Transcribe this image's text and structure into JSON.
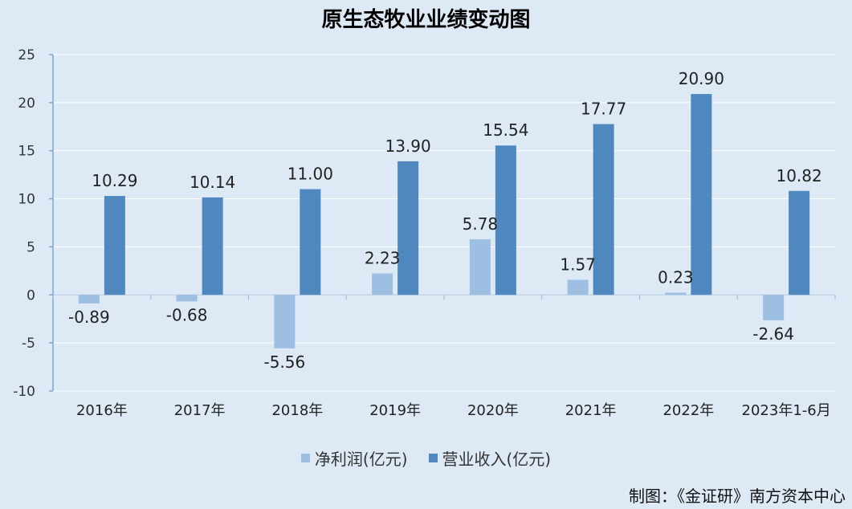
{
  "chart_data": {
    "type": "bar",
    "title": "原生态牧业业绩变动图",
    "categories": [
      "2016年",
      "2017年",
      "2018年",
      "2019年",
      "2020年",
      "2021年",
      "2022年",
      "2023年1-6月"
    ],
    "series": [
      {
        "name": "净利润(亿元)",
        "values": [
          -0.89,
          -0.68,
          -5.56,
          2.23,
          5.78,
          1.57,
          0.23,
          -2.64
        ],
        "labels": [
          "-0.89",
          "-0.68",
          "-5.56",
          "2.23",
          "5.78",
          "1.57",
          "0.23",
          "-2.64"
        ],
        "color": "#9dbfe2"
      },
      {
        "name": "营业收入(亿元)",
        "values": [
          10.29,
          10.14,
          11.0,
          13.9,
          15.54,
          17.77,
          20.9,
          10.82
        ],
        "labels": [
          "10.29",
          "10.14",
          "11.00",
          "13.90",
          "15.54",
          "17.77",
          "20.90",
          "10.82"
        ],
        "color": "#4f88bf"
      }
    ],
    "yticks": [
      "25",
      "20",
      "15",
      "10",
      "5",
      "0",
      "-5",
      "-10"
    ],
    "ylim": [
      -10,
      25
    ],
    "grid": true,
    "legend_position": "bottom"
  },
  "footer": {
    "source": "制图：《金证研》南方资本中心"
  }
}
